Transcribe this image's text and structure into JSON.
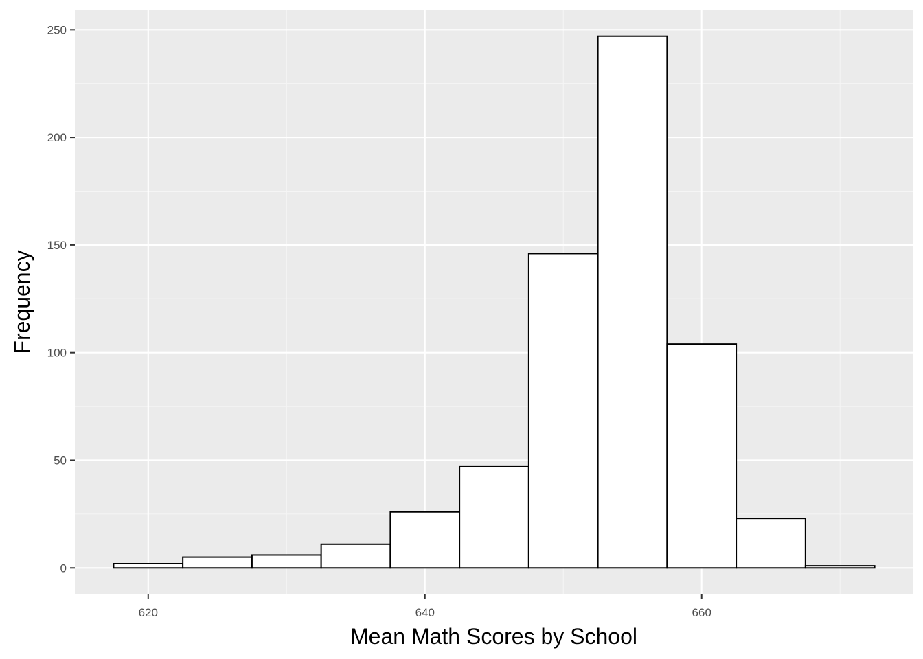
{
  "chart_data": {
    "type": "bar",
    "subtype": "histogram",
    "title": "",
    "xlabel": "Mean Math Scores by School",
    "ylabel": "Frequency",
    "bin_width": 5,
    "bin_centers": [
      620,
      625,
      630,
      635,
      640,
      645,
      650,
      655,
      660,
      665,
      670
    ],
    "categories": [
      "617.5-622.5",
      "622.5-627.5",
      "627.5-632.5",
      "632.5-637.5",
      "637.5-642.5",
      "642.5-647.5",
      "647.5-652.5",
      "652.5-657.5",
      "657.5-662.5",
      "662.5-667.5",
      "667.5-672.5"
    ],
    "values": [
      2,
      5,
      6,
      11,
      26,
      47,
      146,
      247,
      104,
      23,
      1
    ],
    "xlim": [
      614.7,
      675.3
    ],
    "ylim": [
      -12.35,
      259.35
    ],
    "x_ticks": [
      620,
      640,
      660
    ],
    "y_ticks": [
      0,
      50,
      100,
      150,
      200,
      250
    ],
    "grid": true,
    "legend": null,
    "colors": {
      "panel_background": "#ebebeb",
      "grid_major": "#ffffff",
      "grid_minor": "#f5f5f5",
      "bar_fill": "#ffffff",
      "bar_outline": "#000000",
      "tick_text": "#4d4d4d",
      "tick_mark": "#333333",
      "axis_title": "#000000"
    }
  }
}
